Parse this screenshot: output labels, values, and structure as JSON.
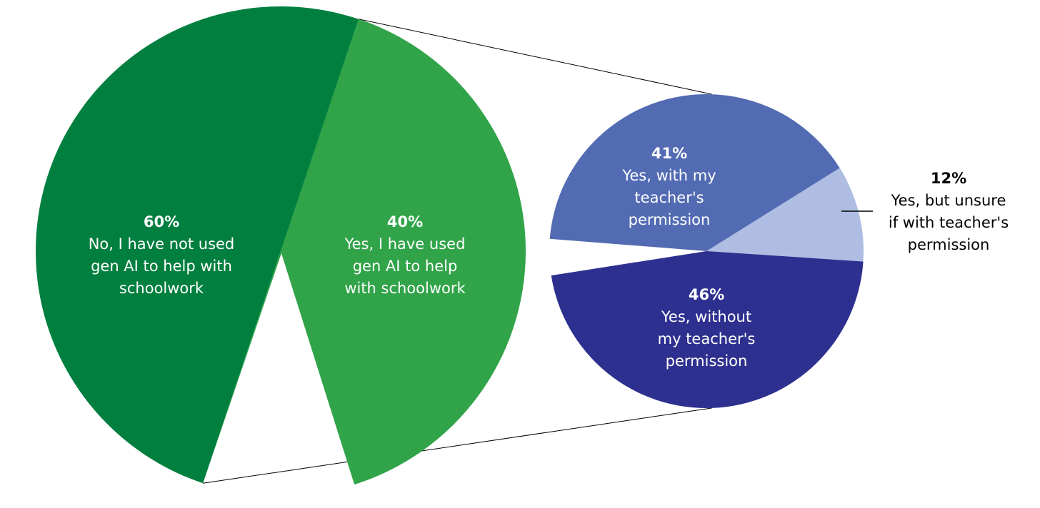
{
  "chart_data": [
    {
      "type": "pie",
      "slices": [
        {
          "label": "No, I have not used gen AI to help with schoolwork",
          "value": 60,
          "value_label": "60%",
          "color": "#007f3f",
          "text_color": "#ffffff",
          "lines": [
            "No, I have not used",
            "gen AI to help with",
            "schoolwork"
          ]
        },
        {
          "label": "Yes, I have used gen AI to help with schoolwork",
          "value": 40,
          "value_label": "40%",
          "color": "#31a449",
          "text_color": "#ffffff",
          "lines": [
            "Yes, I have used",
            "gen AI to help",
            "with schoolwork"
          ]
        }
      ]
    },
    {
      "type": "pie",
      "breakdown_of": "Yes, I have used gen AI to help with schoolwork",
      "slices": [
        {
          "label": "Yes, with my teacher's permission",
          "value": 41,
          "value_label": "41%",
          "color": "#526bb3",
          "text_color": "#ffffff",
          "lines": [
            "Yes, with my",
            "teacher's",
            "permission"
          ]
        },
        {
          "label": "Yes, but unsure if with teacher's permission",
          "value": 12,
          "value_label": "12%",
          "color": "#aebde1",
          "text_color": "#000000",
          "lines": [
            "Yes, but unsure",
            "if with teacher's",
            "permission"
          ]
        },
        {
          "label": "Yes, without my teacher's permission",
          "value": 46,
          "value_label": "46%",
          "color": "#2e3090",
          "text_color": "#ffffff",
          "lines": [
            "Yes, without",
            "my teacher's",
            "permission"
          ]
        }
      ]
    }
  ]
}
